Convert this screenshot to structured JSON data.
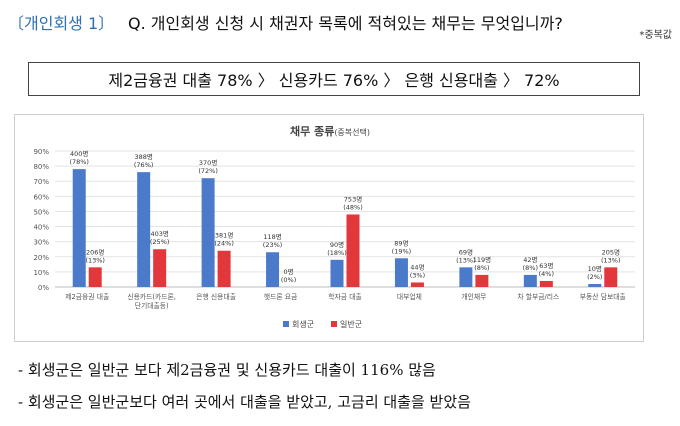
{
  "header": {
    "tag": "〔개인회생 1〕",
    "question": "Q. 개인회생 신청 시 채권자 목록에 적혀있는 채무는 무엇입니까?",
    "note": "*중복값"
  },
  "summary": "제2금융권 대출 78% 〉 신용카드 76% 〉 은행 신용대출 〉 72%",
  "chart_data": {
    "type": "bar",
    "title": "채무 종류",
    "subtitle": "(중복선택)",
    "categories": [
      "제2금융권 대출",
      "신용카드(카드론, 단기대출등)",
      "은행 신용대출",
      "햇드론 요금",
      "학자금 대출",
      "대부업체",
      "개인채무",
      "차 할부금/리스",
      "부동산 담보대출"
    ],
    "category_lines": [
      [
        "제2금융권 대출"
      ],
      [
        "신용카드(카드론,",
        "단기대출등)"
      ],
      [
        "은행 신용대출"
      ],
      [
        "햇드론 요금"
      ],
      [
        "학자금 대출"
      ],
      [
        "대부업체"
      ],
      [
        "개인채무"
      ],
      [
        "차 할부금/리스"
      ],
      [
        "부동산 담보대출"
      ]
    ],
    "series": [
      {
        "name": "회생군",
        "color": "#4a7ac9",
        "values": [
          78,
          76,
          72,
          23,
          18,
          19,
          13,
          8,
          2
        ],
        "labels": [
          "400명",
          "388명",
          "370명",
          "118명",
          "90명",
          "89명",
          "69명",
          "42명",
          "10명"
        ],
        "pct_labels": [
          "(78%)",
          "(76%)",
          "(72%)",
          "(23%)",
          "(18%)",
          "(19%)",
          "(13%)",
          "(8%)",
          "(2%)"
        ]
      },
      {
        "name": "일반군",
        "color": "#e2383b",
        "values": [
          13,
          25,
          24,
          0,
          48,
          3,
          8,
          4,
          13
        ],
        "labels": [
          "206명",
          "403명",
          "381명",
          "0명",
          "753명",
          "44명",
          "119명",
          "63명",
          "205명"
        ],
        "pct_labels": [
          "(13%)",
          "(25%)",
          "(24%)",
          "(0%)",
          "(48%)",
          "(3%)",
          "(8%)",
          "(4%)",
          "(13%)"
        ]
      }
    ],
    "yticks": [
      "0%",
      "10%",
      "20%",
      "30%",
      "40%",
      "50%",
      "60%",
      "70%",
      "80%",
      "90%"
    ],
    "ylim": [
      0,
      90
    ],
    "grid": true,
    "legend": "bottom-center"
  },
  "bullets": [
    "- 회생군은 일반군 보다 제2금융권 및 신용카드 대출이 116% 많음",
    "- 회생군은 일반군보다 여러 곳에서 대출을 받았고, 고금리 대출을 받았음"
  ]
}
